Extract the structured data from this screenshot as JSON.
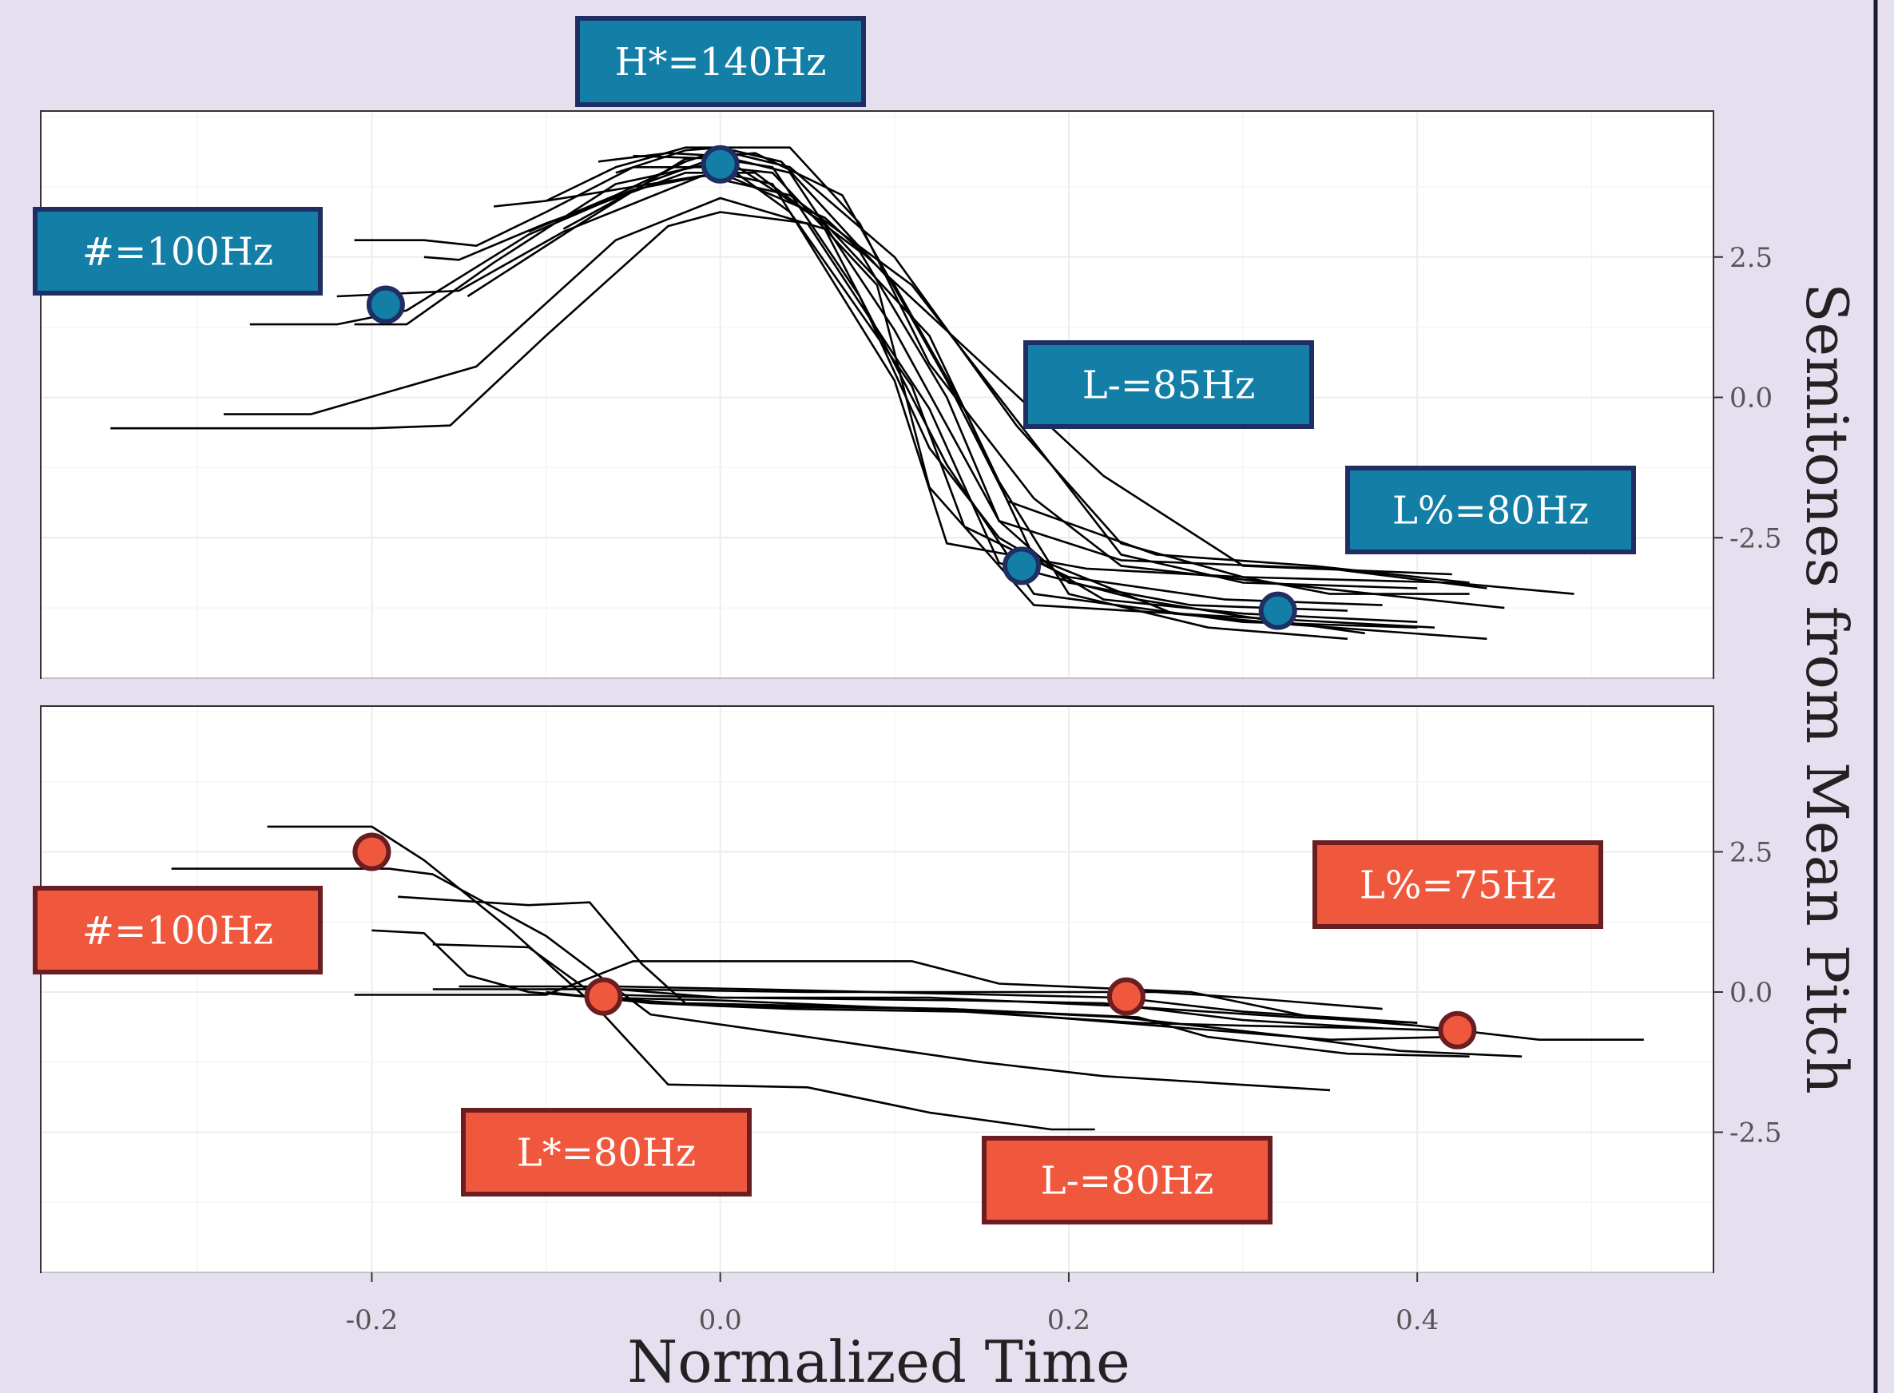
{
  "chart_data": [
    {
      "type": "line",
      "panel": "top",
      "xlim": [
        -0.39,
        0.57
      ],
      "ylim": [
        -5.0,
        5.1
      ],
      "xlabel": "Normalized Time",
      "ylabel": "Semitones from Mean Pitch",
      "x_ticks": [
        -0.2,
        0.0,
        0.2,
        0.4
      ],
      "x_tick_labels": [
        "-0.2",
        "0.0",
        "0.2",
        "0.4"
      ],
      "y_ticks": [
        2.5,
        0.0,
        -2.5
      ],
      "y_tick_labels": [
        "2.5",
        "0.0",
        "-2.5"
      ],
      "grid": true,
      "accent_color": "#137ea6",
      "label_border_color": "#1f2e63",
      "traces": [
        [
          [
            -0.35,
            -0.55
          ],
          [
            -0.2,
            -0.55
          ],
          [
            -0.155,
            -0.5
          ],
          [
            -0.1,
            1.1
          ],
          [
            -0.03,
            3.05
          ],
          [
            0.0,
            3.3
          ],
          [
            0.05,
            3.1
          ],
          [
            0.12,
            -0.2
          ],
          [
            0.16,
            -2.95
          ],
          [
            0.24,
            -3.6
          ],
          [
            0.3,
            -3.9
          ],
          [
            0.37,
            -4.2
          ]
        ],
        [
          [
            -0.285,
            -0.3
          ],
          [
            -0.235,
            -0.3
          ],
          [
            -0.14,
            0.55
          ],
          [
            -0.06,
            2.8
          ],
          [
            0.0,
            3.55
          ],
          [
            0.06,
            3.0
          ],
          [
            0.13,
            -1.2
          ],
          [
            0.18,
            -3.5
          ],
          [
            0.3,
            -4.0
          ],
          [
            0.4,
            -4.1
          ]
        ],
        [
          [
            -0.27,
            1.3
          ],
          [
            -0.22,
            1.3
          ],
          [
            -0.18,
            1.55
          ],
          [
            -0.11,
            2.9
          ],
          [
            -0.05,
            3.7
          ],
          [
            0.0,
            4.0
          ],
          [
            0.06,
            3.2
          ],
          [
            0.14,
            0.9
          ],
          [
            0.22,
            -1.4
          ],
          [
            0.3,
            -3.0
          ],
          [
            0.42,
            -3.15
          ]
        ],
        [
          [
            -0.22,
            1.8
          ],
          [
            -0.15,
            1.9
          ],
          [
            -0.09,
            2.95
          ],
          [
            -0.01,
            3.95
          ],
          [
            0.04,
            3.6
          ],
          [
            0.11,
            2.0
          ],
          [
            0.18,
            -0.8
          ],
          [
            0.23,
            -2.8
          ],
          [
            0.3,
            -3.3
          ],
          [
            0.4,
            -3.4
          ]
        ],
        [
          [
            -0.21,
            1.3
          ],
          [
            -0.18,
            1.3
          ],
          [
            -0.13,
            2.4
          ],
          [
            -0.06,
            3.8
          ],
          [
            0.0,
            4.2
          ],
          [
            0.04,
            3.3
          ],
          [
            0.11,
            0.2
          ],
          [
            0.14,
            -2.3
          ],
          [
            0.2,
            -3.2
          ],
          [
            0.29,
            -3.6
          ],
          [
            0.38,
            -3.7
          ]
        ],
        [
          [
            -0.17,
            2.5
          ],
          [
            -0.15,
            2.45
          ],
          [
            -0.1,
            3.1
          ],
          [
            -0.02,
            4.0
          ],
          [
            0.02,
            4.0
          ],
          [
            0.08,
            2.6
          ],
          [
            0.13,
            0.0
          ],
          [
            0.16,
            -2.2
          ],
          [
            0.2,
            -3.3
          ],
          [
            0.27,
            -3.7
          ],
          [
            0.36,
            -3.8
          ]
        ],
        [
          [
            -0.21,
            2.8
          ],
          [
            -0.17,
            2.8
          ],
          [
            -0.14,
            2.7
          ],
          [
            -0.1,
            3.3
          ],
          [
            -0.05,
            4.1
          ],
          [
            0.0,
            4.1
          ],
          [
            0.03,
            4.0
          ],
          [
            0.09,
            2.0
          ],
          [
            0.12,
            -1.6
          ],
          [
            0.18,
            -3.7
          ],
          [
            0.29,
            -3.9
          ],
          [
            0.41,
            -4.1
          ]
        ],
        [
          [
            -0.13,
            3.4
          ],
          [
            -0.1,
            3.5
          ],
          [
            -0.05,
            3.75
          ],
          [
            0.0,
            4.0
          ],
          [
            0.03,
            3.8
          ],
          [
            0.1,
            0.3
          ],
          [
            0.13,
            -2.6
          ],
          [
            0.21,
            -3.05
          ],
          [
            0.3,
            -3.2
          ],
          [
            0.35,
            -3.5
          ],
          [
            0.43,
            -3.5
          ]
        ],
        [
          [
            -0.145,
            1.8
          ],
          [
            -0.08,
            3.1
          ],
          [
            -0.02,
            4.25
          ],
          [
            0.02,
            4.35
          ],
          [
            0.07,
            3.6
          ],
          [
            0.13,
            0.3
          ],
          [
            0.165,
            -1.85
          ],
          [
            0.25,
            -2.8
          ],
          [
            0.34,
            -3.0
          ],
          [
            0.43,
            -3.3
          ]
        ],
        [
          [
            -0.11,
            2.95
          ],
          [
            -0.06,
            3.6
          ],
          [
            -0.02,
            4.2
          ],
          [
            0.0,
            4.4
          ],
          [
            0.04,
            4.1
          ],
          [
            0.1,
            2.5
          ],
          [
            0.17,
            -0.5
          ],
          [
            0.23,
            -2.6
          ],
          [
            0.3,
            -3.2
          ],
          [
            0.42,
            -3.3
          ],
          [
            0.49,
            -3.5
          ]
        ],
        [
          [
            -0.09,
            3.0
          ],
          [
            -0.04,
            3.85
          ],
          [
            0.0,
            4.3
          ],
          [
            0.04,
            4.0
          ],
          [
            0.1,
            1.2
          ],
          [
            0.16,
            -2.2
          ],
          [
            0.23,
            -2.9
          ],
          [
            0.35,
            -3.05
          ],
          [
            0.44,
            -3.4
          ]
        ],
        [
          [
            -0.1,
            3.5
          ],
          [
            -0.06,
            4.1
          ],
          [
            -0.02,
            4.45
          ],
          [
            0.04,
            4.45
          ],
          [
            0.08,
            3.1
          ],
          [
            0.12,
            0.6
          ],
          [
            0.18,
            -1.8
          ],
          [
            0.23,
            -3.0
          ],
          [
            0.33,
            -3.35
          ],
          [
            0.45,
            -3.75
          ]
        ],
        [
          [
            -0.06,
            4.0
          ],
          [
            -0.02,
            4.4
          ],
          [
            0.0,
            4.45
          ],
          [
            0.035,
            4.2
          ],
          [
            0.1,
            2.0
          ],
          [
            0.14,
            -0.2
          ],
          [
            0.18,
            -2.85
          ],
          [
            0.26,
            -3.85
          ],
          [
            0.33,
            -4.05
          ],
          [
            0.44,
            -4.3
          ]
        ],
        [
          [
            -0.07,
            4.2
          ],
          [
            -0.03,
            4.35
          ],
          [
            0.0,
            4.3
          ],
          [
            0.06,
            3.1
          ],
          [
            0.12,
            1.1
          ],
          [
            0.16,
            -1.5
          ],
          [
            0.2,
            -3.5
          ],
          [
            0.28,
            -4.1
          ],
          [
            0.36,
            -4.3
          ]
        ],
        [
          [
            -0.05,
            4.3
          ],
          [
            0.0,
            4.25
          ],
          [
            0.03,
            4.1
          ],
          [
            0.08,
            1.8
          ],
          [
            0.12,
            -0.9
          ],
          [
            0.16,
            -2.5
          ],
          [
            0.22,
            -3.6
          ],
          [
            0.3,
            -3.85
          ],
          [
            0.4,
            -4.0
          ]
        ]
      ],
      "points": [
        [
          -0.192,
          1.65
        ],
        [
          0.0,
          4.15
        ],
        [
          0.173,
          -3.0
        ],
        [
          0.32,
          -3.8
        ]
      ],
      "labels": [
        {
          "text": "#=100Hz"
        },
        {
          "text": "H*=140Hz"
        },
        {
          "text": "L-=85Hz"
        },
        {
          "text": "L%=80Hz"
        }
      ]
    },
    {
      "type": "line",
      "panel": "bottom",
      "xlim": [
        -0.39,
        0.57
      ],
      "ylim": [
        -5.0,
        5.1
      ],
      "x_ticks": [
        -0.2,
        0.0,
        0.2,
        0.4
      ],
      "x_tick_labels": [
        "-0.2",
        "0.0",
        "0.2",
        "0.4"
      ],
      "y_ticks": [
        2.5,
        0.0,
        -2.5
      ],
      "y_tick_labels": [
        "2.5",
        "0.0",
        "-2.5"
      ],
      "grid": true,
      "accent_color": "#f0583e",
      "label_border_color": "#6b1e22",
      "traces": [
        [
          [
            -0.315,
            2.2
          ],
          [
            -0.19,
            2.2
          ],
          [
            -0.165,
            2.1
          ],
          [
            -0.1,
            1.0
          ],
          [
            -0.04,
            -0.4
          ],
          [
            0.05,
            -0.8
          ],
          [
            0.15,
            -1.25
          ],
          [
            0.22,
            -1.5
          ],
          [
            0.35,
            -1.75
          ]
        ],
        [
          [
            -0.26,
            2.95
          ],
          [
            -0.2,
            2.95
          ],
          [
            -0.17,
            2.35
          ],
          [
            -0.12,
            1.1
          ],
          [
            -0.07,
            -0.3
          ],
          [
            -0.03,
            -1.65
          ],
          [
            0.05,
            -1.7
          ],
          [
            0.12,
            -2.15
          ],
          [
            0.19,
            -2.45
          ],
          [
            0.215,
            -2.45
          ]
        ],
        [
          [
            -0.185,
            1.7
          ],
          [
            -0.11,
            1.55
          ],
          [
            -0.075,
            1.6
          ],
          [
            -0.045,
            0.5
          ],
          [
            -0.02,
            -0.2
          ],
          [
            0.13,
            -0.3
          ],
          [
            0.24,
            -0.45
          ],
          [
            0.28,
            -0.8
          ],
          [
            0.36,
            -1.1
          ],
          [
            0.43,
            -1.15
          ]
        ],
        [
          [
            -0.2,
            1.1
          ],
          [
            -0.17,
            1.05
          ],
          [
            -0.145,
            0.3
          ],
          [
            -0.11,
            0.0
          ],
          [
            -0.07,
            -0.1
          ],
          [
            0.0,
            -0.15
          ],
          [
            0.15,
            -0.35
          ],
          [
            0.27,
            -0.65
          ],
          [
            0.35,
            -0.85
          ],
          [
            0.42,
            -0.8
          ]
        ],
        [
          [
            -0.165,
            0.85
          ],
          [
            -0.11,
            0.8
          ],
          [
            -0.07,
            -0.1
          ],
          [
            0.0,
            -0.25
          ],
          [
            0.13,
            -0.3
          ],
          [
            0.23,
            -0.45
          ],
          [
            0.33,
            -0.8
          ],
          [
            0.39,
            -1.05
          ],
          [
            0.46,
            -1.15
          ]
        ],
        [
          [
            -0.21,
            -0.05
          ],
          [
            -0.1,
            -0.05
          ],
          [
            -0.05,
            0.55
          ],
          [
            0.04,
            0.55
          ],
          [
            0.11,
            0.55
          ],
          [
            0.16,
            0.15
          ],
          [
            0.27,
            0.0
          ],
          [
            0.34,
            -0.45
          ],
          [
            0.4,
            -0.6
          ],
          [
            0.47,
            -0.85
          ],
          [
            0.53,
            -0.85
          ]
        ],
        [
          [
            -0.165,
            0.05
          ],
          [
            -0.06,
            0.05
          ],
          [
            0.0,
            -0.1
          ],
          [
            0.14,
            -0.15
          ],
          [
            0.22,
            -0.2
          ],
          [
            0.3,
            -0.5
          ],
          [
            0.38,
            -0.65
          ],
          [
            0.43,
            -0.7
          ]
        ],
        [
          [
            -0.15,
            0.1
          ],
          [
            -0.06,
            0.1
          ],
          [
            0.02,
            0.05
          ],
          [
            0.16,
            -0.05
          ],
          [
            0.23,
            -0.1
          ],
          [
            0.3,
            -0.35
          ],
          [
            0.4,
            -0.55
          ]
        ],
        [
          [
            -0.1,
            0.0
          ],
          [
            -0.04,
            -0.2
          ],
          [
            0.04,
            -0.3
          ],
          [
            0.14,
            -0.35
          ],
          [
            0.24,
            -0.55
          ],
          [
            0.3,
            -0.6
          ],
          [
            0.38,
            -0.65
          ]
        ],
        [
          [
            -0.06,
            -0.05
          ],
          [
            0.0,
            -0.1
          ],
          [
            0.12,
            -0.1
          ],
          [
            0.23,
            -0.25
          ],
          [
            0.33,
            -0.45
          ],
          [
            0.4,
            -0.55
          ]
        ],
        [
          [
            -0.1,
            0.05
          ],
          [
            -0.06,
            0.05
          ],
          [
            0.05,
            0.0
          ],
          [
            0.15,
            0.0
          ],
          [
            0.25,
            0.0
          ],
          [
            0.3,
            -0.1
          ],
          [
            0.38,
            -0.3
          ]
        ]
      ],
      "points": [
        [
          -0.2,
          2.5
        ],
        [
          -0.067,
          -0.08
        ],
        [
          0.233,
          -0.08
        ],
        [
          0.423,
          -0.68
        ]
      ],
      "labels": [
        {
          "text": "#=100Hz"
        },
        {
          "text": "L*=80Hz"
        },
        {
          "text": "L-=80Hz"
        },
        {
          "text": "L%=75Hz"
        }
      ]
    }
  ]
}
